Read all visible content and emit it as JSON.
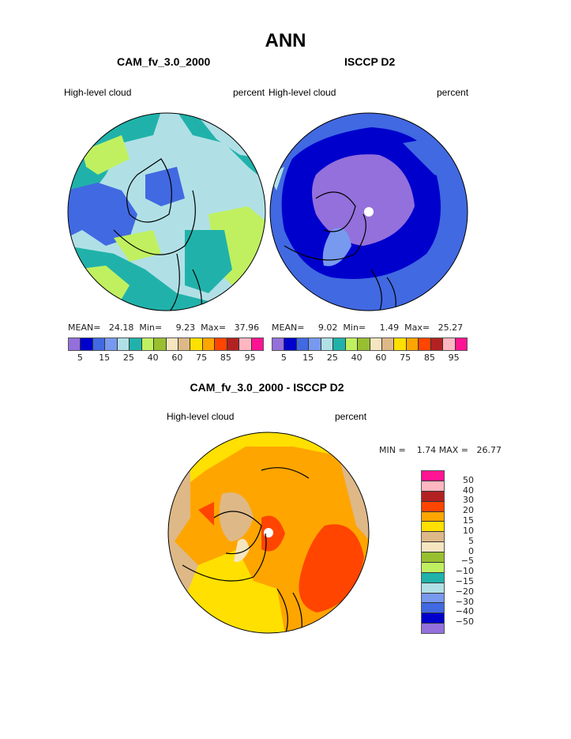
{
  "title": "ANN",
  "panels": [
    {
      "case": "CAM_fv_3.0_2000",
      "variable": "High-level cloud",
      "units": "percent",
      "mean_label": "MEAN=",
      "mean": "24.18",
      "min_label": "Min=",
      "min": "9.23",
      "max_label": "Max=",
      "max": "37.96"
    },
    {
      "case": "ISCCP D2",
      "variable": "High-level cloud",
      "units": "percent",
      "mean_label": "MEAN=",
      "mean": "9.02",
      "min_label": "Min=",
      "min": "1.49",
      "max_label": "Max=",
      "max": "25.27"
    }
  ],
  "colorbar": {
    "colors": [
      "#9370db",
      "#0000cd",
      "#4169e1",
      "#7799ee",
      "#b0e0e6",
      "#20b2aa",
      "#c0f060",
      "#98bf30",
      "#f5e6c0",
      "#deb887",
      "#ffe000",
      "#ffa500",
      "#ff4500",
      "#b22222",
      "#ffb6c1",
      "#ff1493"
    ],
    "labels": [
      "5",
      "15",
      "25",
      "40",
      "60",
      "75",
      "85",
      "95"
    ]
  },
  "difference": {
    "title": "CAM_fv_3.0_2000 - ISCCP D2",
    "variable": "High-level cloud",
    "units": "percent",
    "min_label": "MIN =",
    "min": "1.74",
    "max_label": "MAX =",
    "max": "26.77",
    "colorbar_labels": [
      "50",
      "40",
      "30",
      "20",
      "15",
      "10",
      "5",
      "0",
      "−5",
      "−10",
      "−15",
      "−20",
      "−30",
      "−40",
      "−50"
    ]
  }
}
